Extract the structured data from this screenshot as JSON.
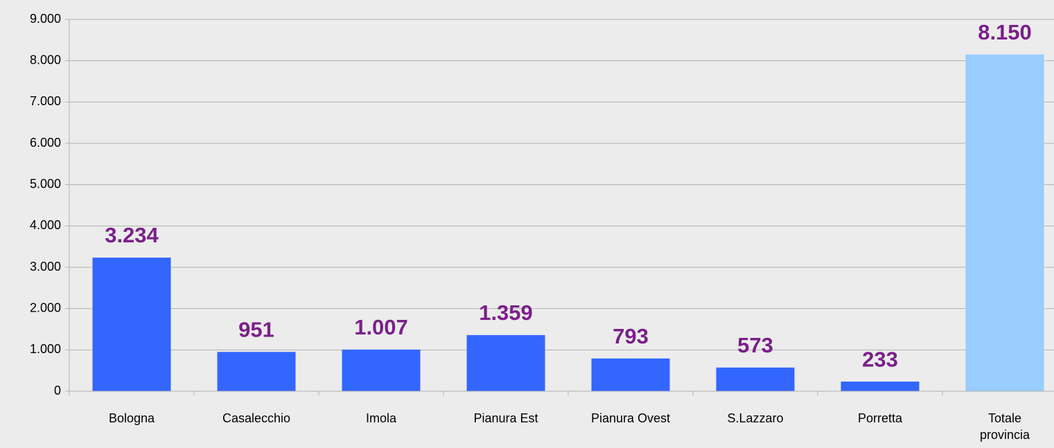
{
  "chart_data": {
    "type": "bar",
    "categories": [
      "Bologna",
      "Casalecchio",
      "Imola",
      "Pianura Est",
      "Pianura Ovest",
      "S.Lazzaro",
      "Porretta",
      "Totale provincia"
    ],
    "values": [
      3234,
      951,
      1007,
      1359,
      793,
      573,
      233,
      8150
    ],
    "value_labels": [
      "3.234",
      "951",
      "1.007",
      "1.359",
      "793",
      "573",
      "233",
      "8.150"
    ],
    "colors": [
      "#3366ff",
      "#3366ff",
      "#3366ff",
      "#3366ff",
      "#3366ff",
      "#3366ff",
      "#3366ff",
      "#99ccff"
    ],
    "ylim": [
      0,
      9000
    ],
    "yticks": [
      0,
      {
        "value": 1000,
        "label": "1.000"
      },
      {
        "value": 2000,
        "label": "2.000"
      },
      {
        "value": 3000,
        "label": "3.000"
      },
      {
        "value": 4000,
        "label": "4.000"
      },
      {
        "value": 5000,
        "label": "5.000"
      },
      {
        "value": 6000,
        "label": "6.000"
      },
      {
        "value": 7000,
        "label": "7.000"
      },
      {
        "value": 8000,
        "label": "8.000"
      },
      {
        "value": 9000,
        "label": "9.000"
      }
    ],
    "grid": true
  }
}
